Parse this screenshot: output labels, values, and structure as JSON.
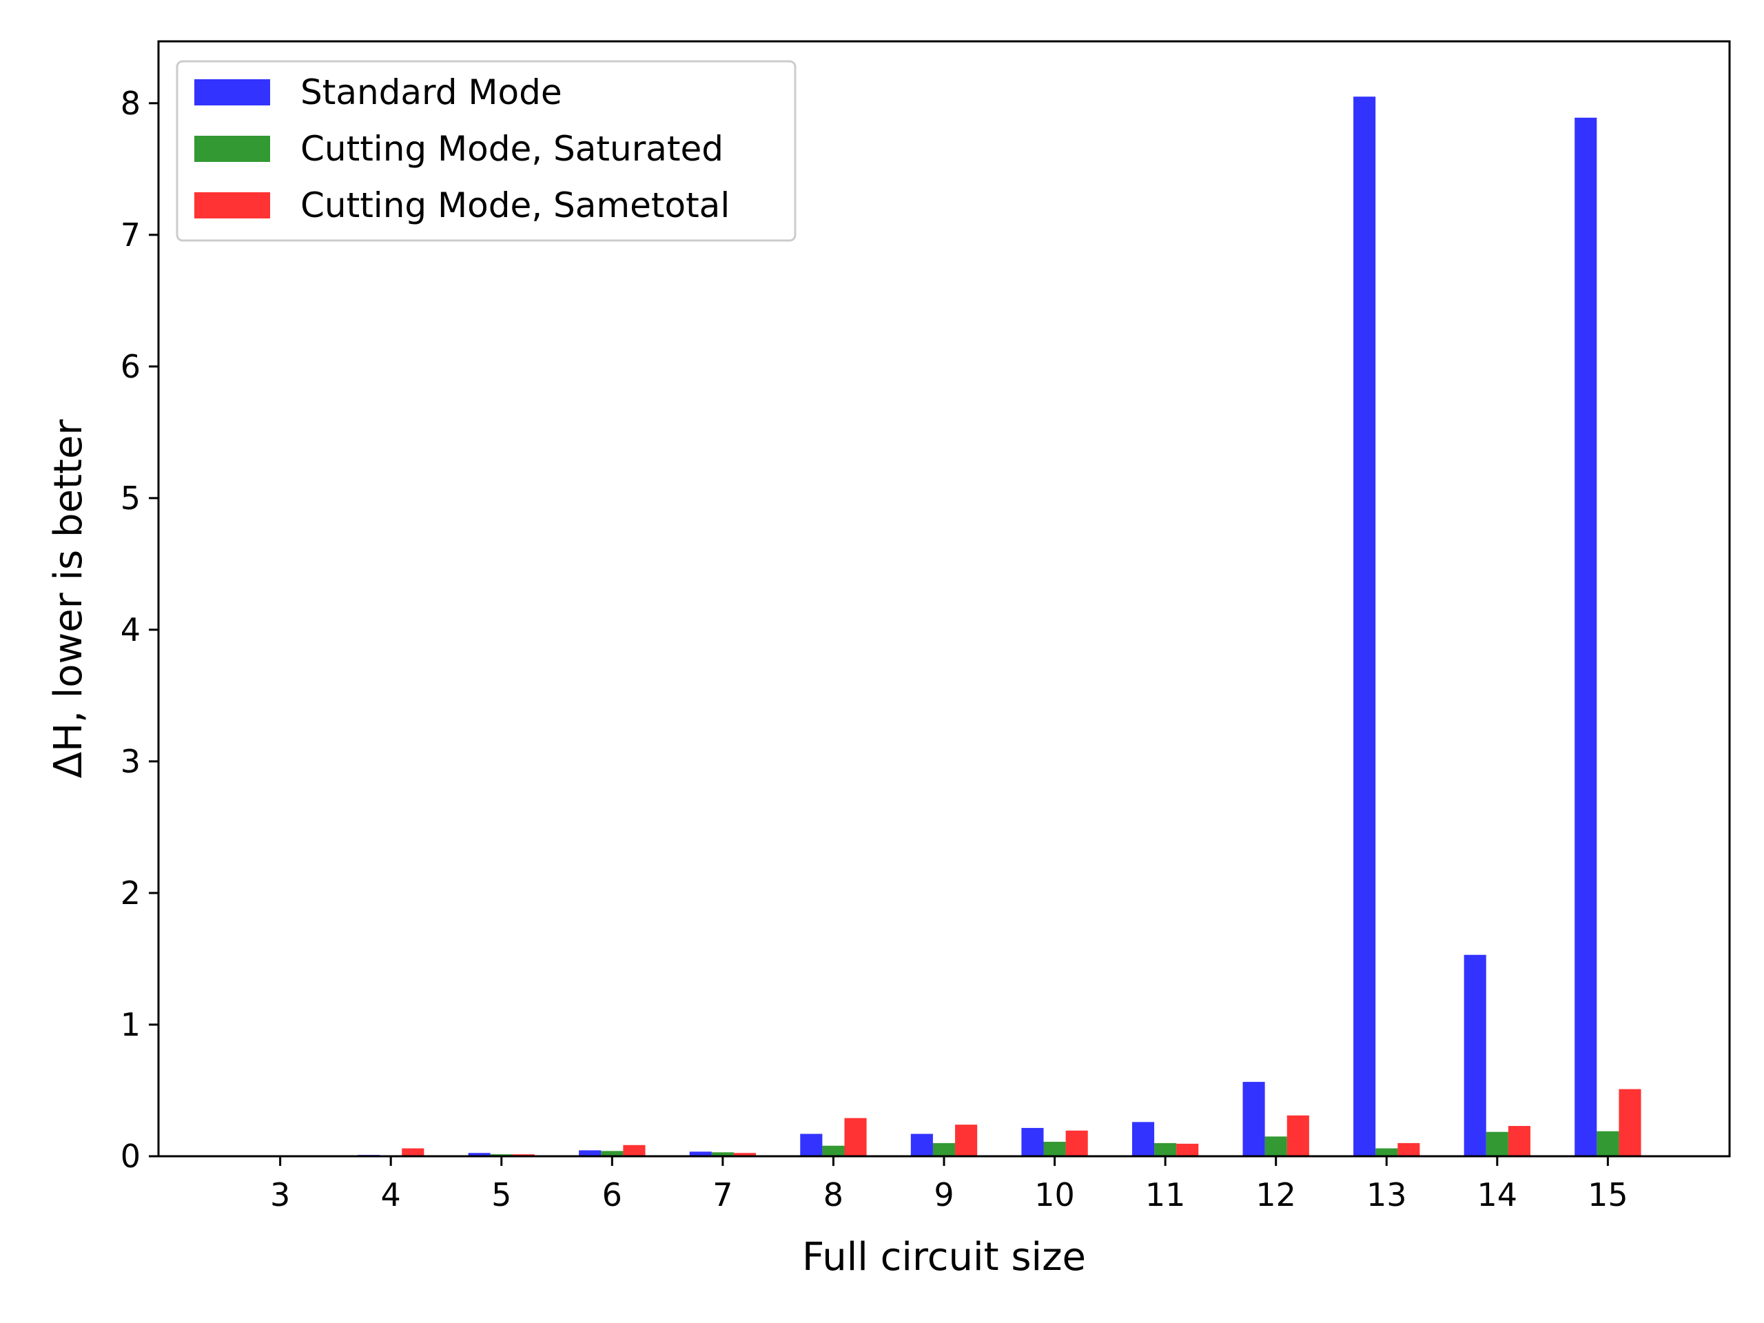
{
  "chart_data": {
    "type": "bar",
    "xlabel": "Full circuit size",
    "ylabel": "ΔH, lower is better",
    "categories": [
      "3",
      "4",
      "5",
      "6",
      "7",
      "8",
      "9",
      "10",
      "11",
      "12",
      "13",
      "14",
      "15"
    ],
    "ylim": [
      0,
      8.47
    ],
    "yticks": [
      "0",
      "1",
      "2",
      "3",
      "4",
      "5",
      "6",
      "7",
      "8"
    ],
    "grid": false,
    "legend_position": "top-left",
    "series": [
      {
        "name": "Standard Mode",
        "color": "#0000ff",
        "values": [
          0.002,
          0.01,
          0.025,
          0.045,
          0.035,
          0.17,
          0.17,
          0.215,
          0.26,
          0.565,
          8.05,
          1.53,
          7.89
        ]
      },
      {
        "name": "Cutting Mode, Saturated",
        "color": "#008000",
        "values": [
          0.002,
          0.006,
          0.015,
          0.04,
          0.03,
          0.08,
          0.1,
          0.11,
          0.1,
          0.15,
          0.06,
          0.185,
          0.19
        ]
      },
      {
        "name": "Cutting Mode, Sametotal",
        "color": "#ff0000",
        "values": [
          0.002,
          0.06,
          0.015,
          0.085,
          0.025,
          0.29,
          0.24,
          0.195,
          0.095,
          0.31,
          0.1,
          0.23,
          0.51
        ]
      }
    ]
  }
}
